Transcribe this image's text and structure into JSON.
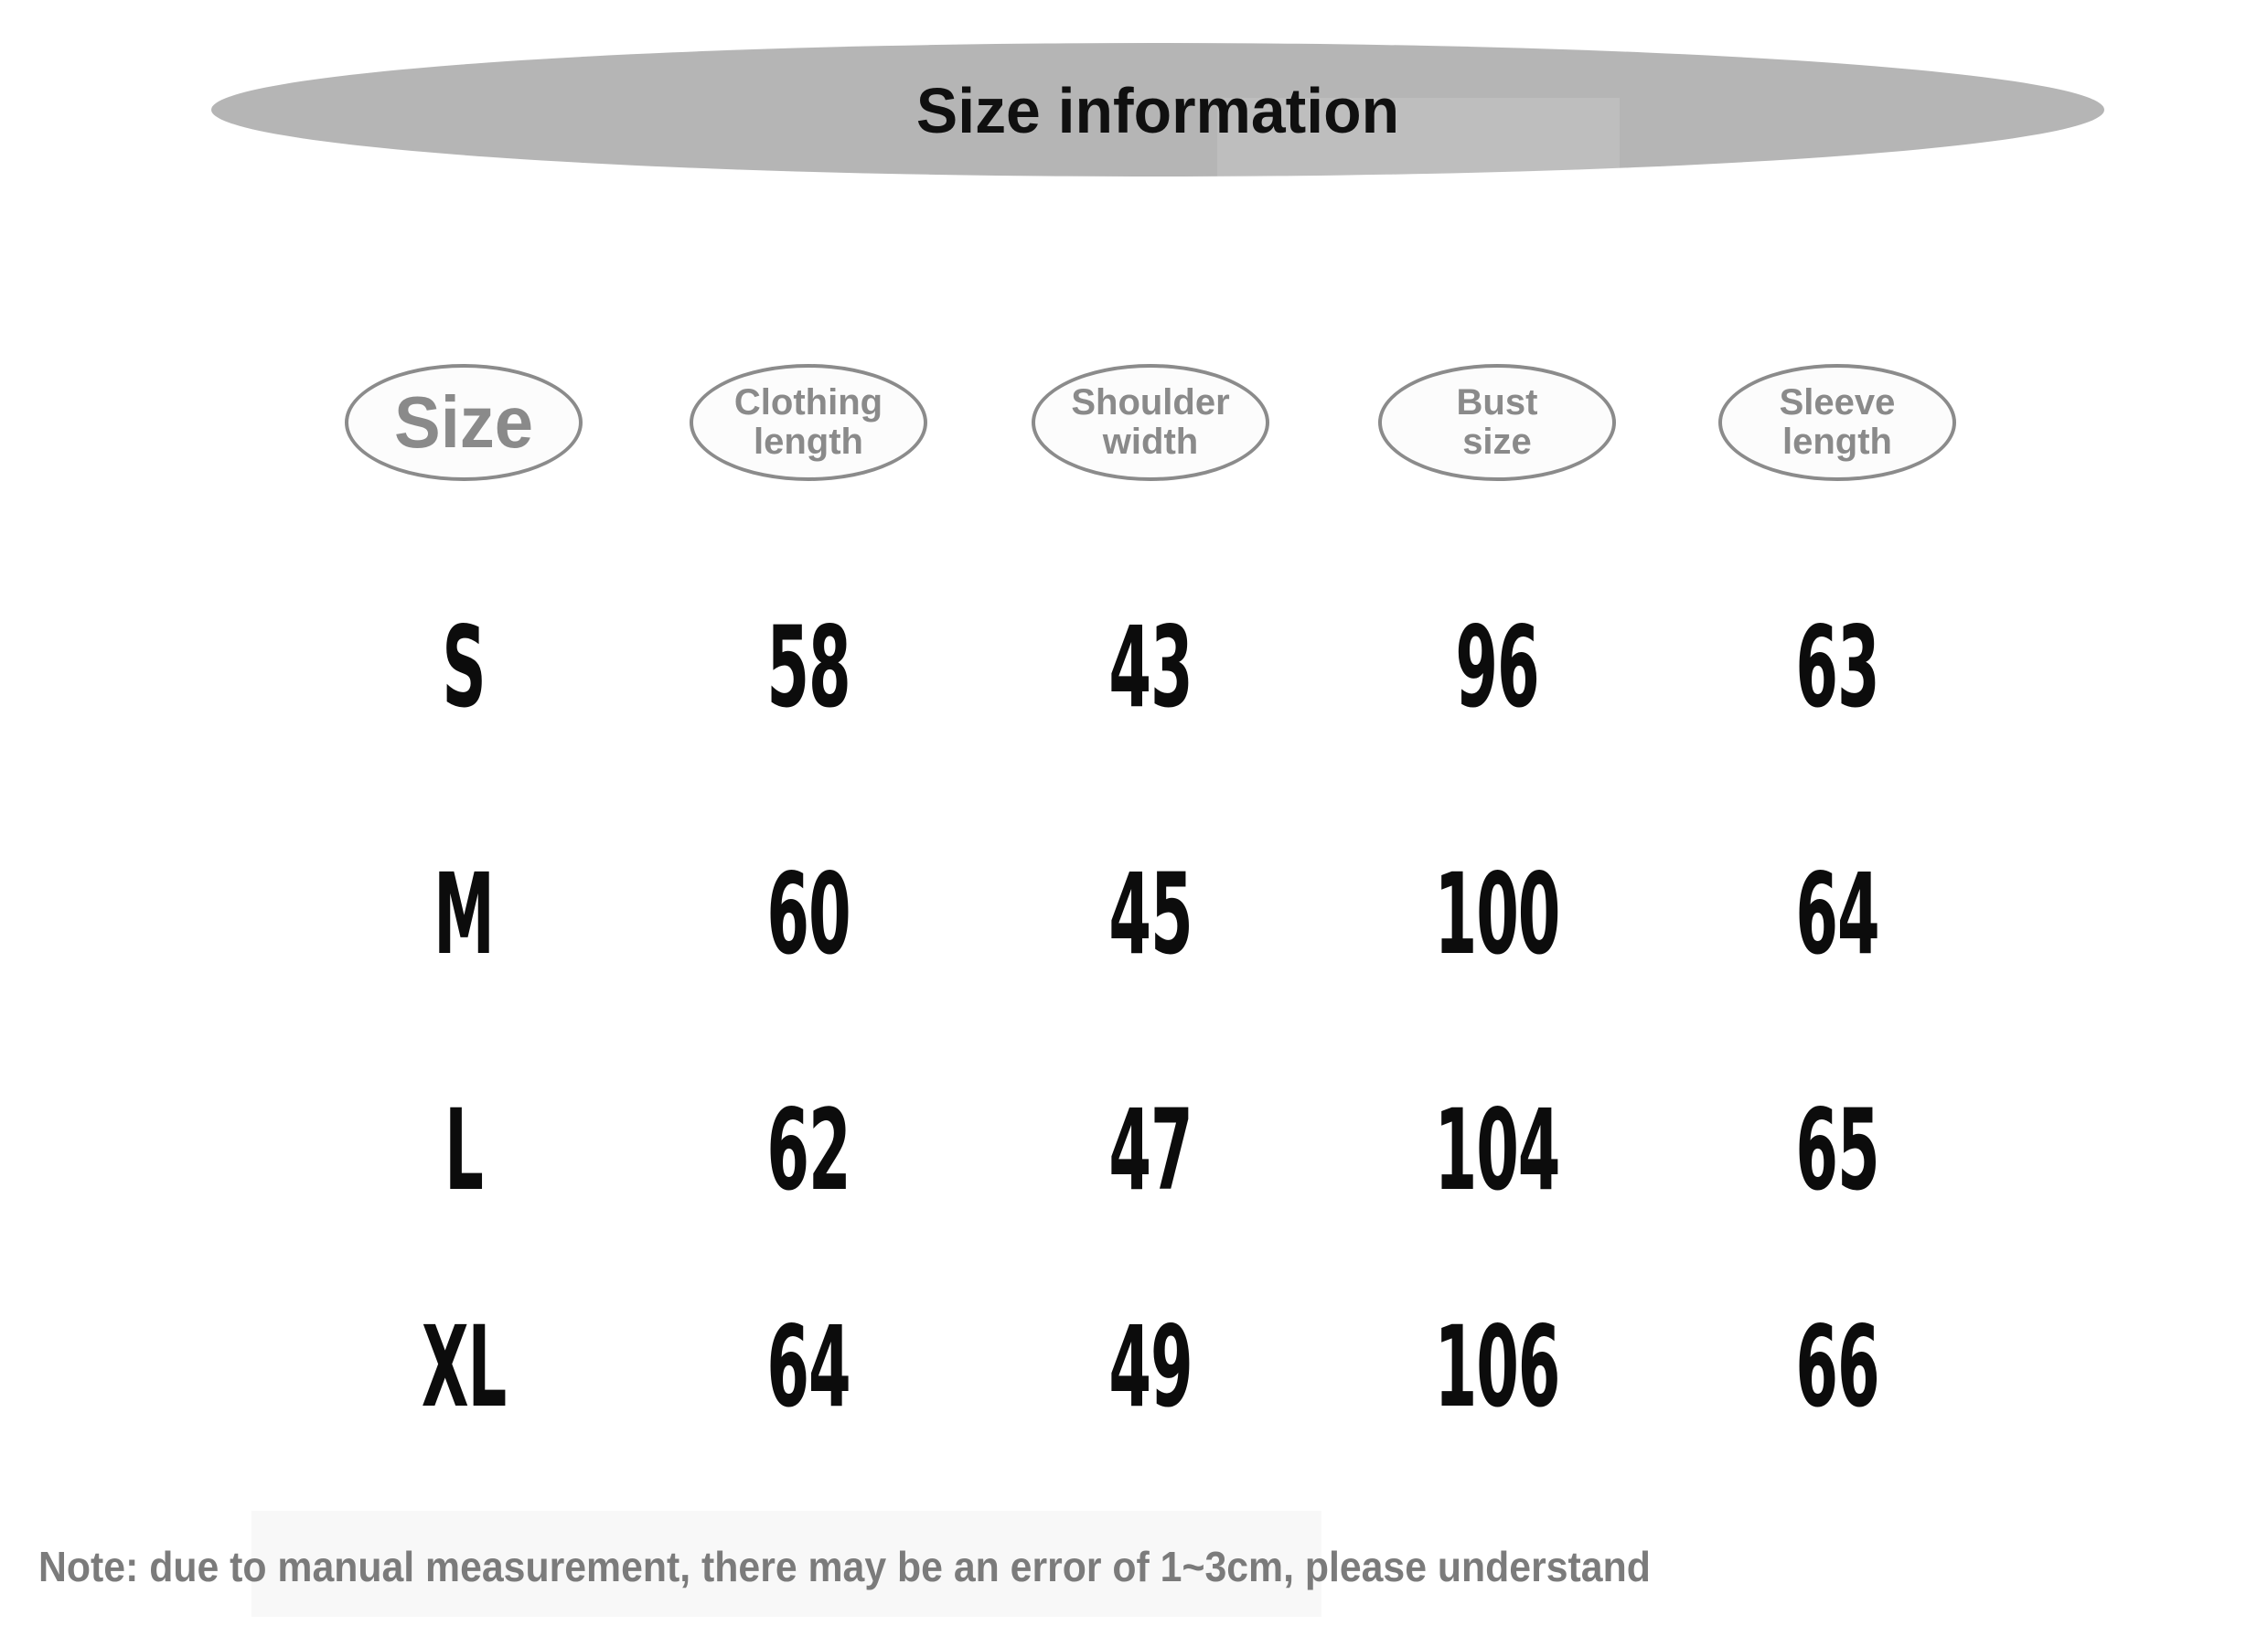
{
  "title": "Size information",
  "table": {
    "headers": [
      {
        "id": "size",
        "label": "Size"
      },
      {
        "id": "clothing-length",
        "label": "Clothing\nlength"
      },
      {
        "id": "shoulder-width",
        "label": "Shoulder\nwidth"
      },
      {
        "id": "bust-size",
        "label": "Bust\nsize"
      },
      {
        "id": "sleeve-length",
        "label": "Sleeve\nlength"
      }
    ],
    "rows": [
      {
        "size": "S",
        "values": [
          "58",
          "43",
          "96",
          "63"
        ]
      },
      {
        "size": "M",
        "values": [
          "60",
          "45",
          "100",
          "64"
        ]
      },
      {
        "size": "L",
        "values": [
          "62",
          "47",
          "104",
          "65"
        ]
      },
      {
        "size": "XL",
        "values": [
          "64",
          "49",
          "106",
          "66"
        ]
      }
    ]
  },
  "note": "Note: due to manual measurement, there may be an error of 1~3cm, please understand",
  "colors": {
    "banner_gray": "#b5b5b5",
    "ellipse_border": "#8b8b8b",
    "header_text": "#8a8a8a",
    "data_text": "#0c0c0c",
    "note_text": "#7b7b7b",
    "background": "#ffffff"
  },
  "chart_data": {
    "type": "table",
    "title": "Size information",
    "columns": [
      "Size",
      "Clothing length",
      "Shoulder width",
      "Bust size",
      "Sleeve length"
    ],
    "rows": [
      [
        "S",
        58,
        43,
        96,
        63
      ],
      [
        "M",
        60,
        45,
        100,
        64
      ],
      [
        "L",
        62,
        47,
        104,
        65
      ],
      [
        "XL",
        64,
        49,
        106,
        66
      ]
    ],
    "note": "Note: due to manual measurement, there may be an error of 1~3cm, please understand",
    "layout": {
      "header_style": "gray ellipses",
      "grid": false,
      "banner": "gray ellipse title bar"
    }
  }
}
